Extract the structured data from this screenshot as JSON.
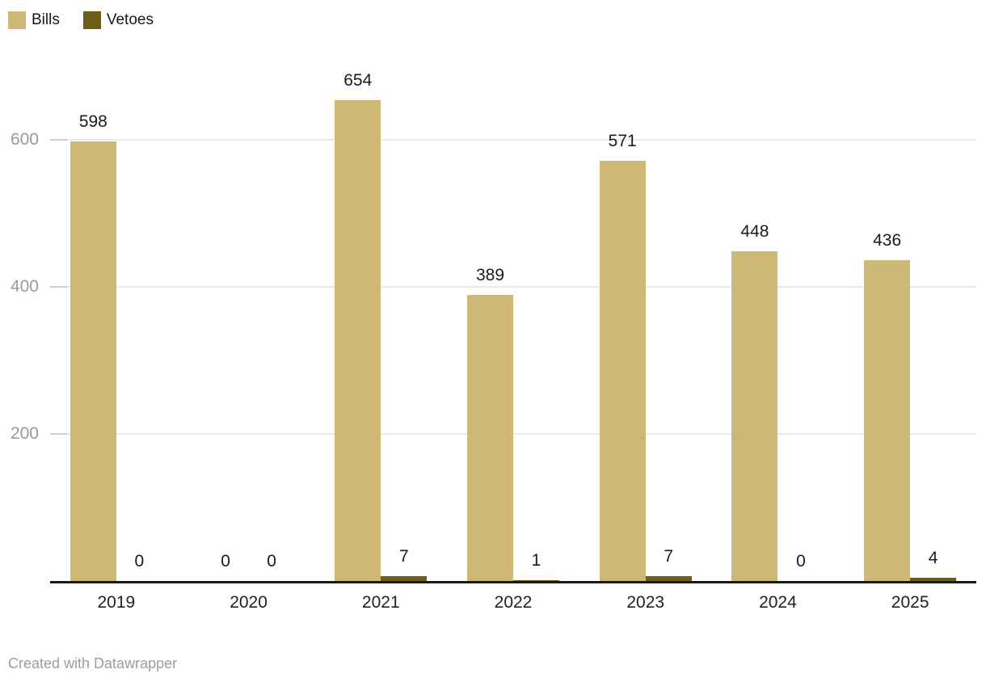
{
  "legend": {
    "items": [
      {
        "label": "Bills",
        "color": "#cdb975"
      },
      {
        "label": "Vetoes",
        "color": "#6c5d17"
      }
    ]
  },
  "chart_data": {
    "type": "bar",
    "categories": [
      "2019",
      "2020",
      "2021",
      "2022",
      "2023",
      "2024",
      "2025"
    ],
    "series": [
      {
        "name": "Bills",
        "color": "#cdb975",
        "values": [
          598,
          0,
          654,
          389,
          571,
          448,
          436
        ]
      },
      {
        "name": "Vetoes",
        "color": "#6c5d17",
        "values": [
          0,
          0,
          7,
          1,
          7,
          0,
          4
        ]
      }
    ],
    "title": "",
    "xlabel": "",
    "ylabel": "",
    "ylim": [
      0,
      700
    ],
    "yticks": [
      200,
      400,
      600
    ],
    "grid": true,
    "legend_position": "top-left",
    "value_labels": true
  },
  "footer": {
    "credit": "Created with Datawrapper"
  },
  "colors": {
    "background": "#ffffff",
    "bills": "#cdb975",
    "vetoes": "#6c5d17",
    "axis_line": "#1a1a1a",
    "gridline": "#e8e8e8",
    "tick_mark": "#cfcfcf",
    "tick_label": "#9a9a9a",
    "value_label": "#1b1b1b",
    "category_label": "#222222",
    "credit_text": "#9d9d9d"
  }
}
